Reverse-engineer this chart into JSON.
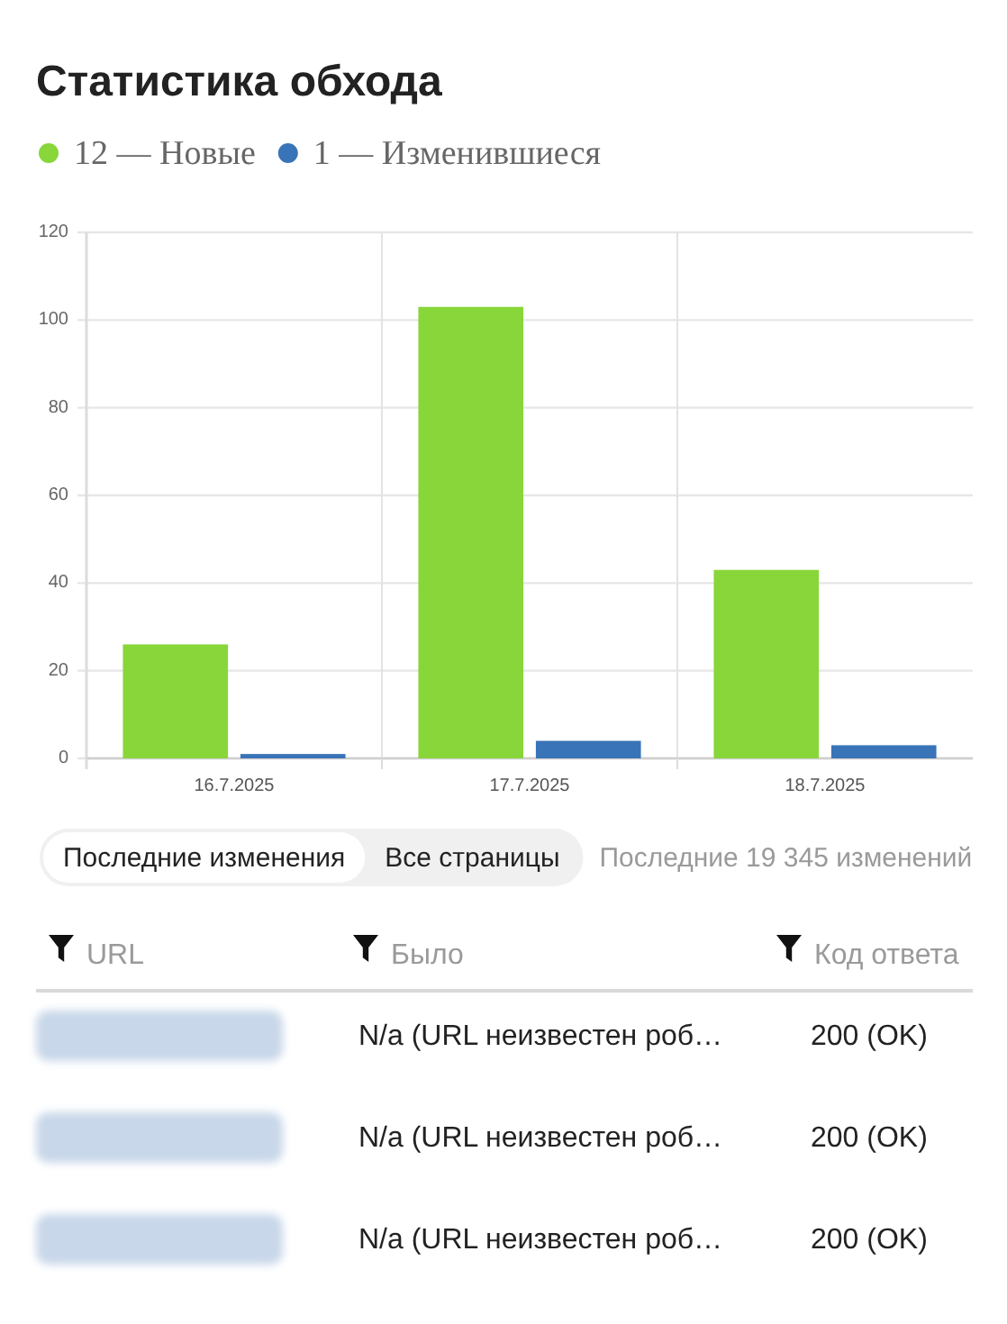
{
  "chart_data": [
    {
      "type": "bar",
      "title": "Статистика обхода",
      "categories": [
        "16.7.2025",
        "17.7.2025",
        "18.7.2025"
      ],
      "series": [
        {
          "name": "12 — Новые",
          "color": "#88d63a",
          "values": [
            26,
            103,
            43
          ]
        },
        {
          "name": "1 — Изменившиеся",
          "color": "#3874b7",
          "values": [
            1,
            4,
            3
          ]
        }
      ],
      "ylim": [
        0,
        120
      ],
      "yticks": [
        0,
        20,
        40,
        60,
        80,
        100,
        120
      ],
      "grid": true,
      "legend": "top left"
    },
    {
      "type": "other",
      "annotations": [
        "Последние изменения",
        "Все страницы",
        "Последние 19 345 изменений"
      ],
      "categories": [
        "URL",
        "Было",
        "Код ответа"
      ],
      "cell_labels": [
        [
          null,
          "N/a (URL неизвестен роб…",
          "200 (OK)"
        ],
        [
          null,
          "N/a (URL неизвестен роб…",
          "200 (OK)"
        ],
        [
          null,
          "N/a (URL неизвестен роб…",
          "200 (OK)"
        ]
      ]
    }
  ]
}
